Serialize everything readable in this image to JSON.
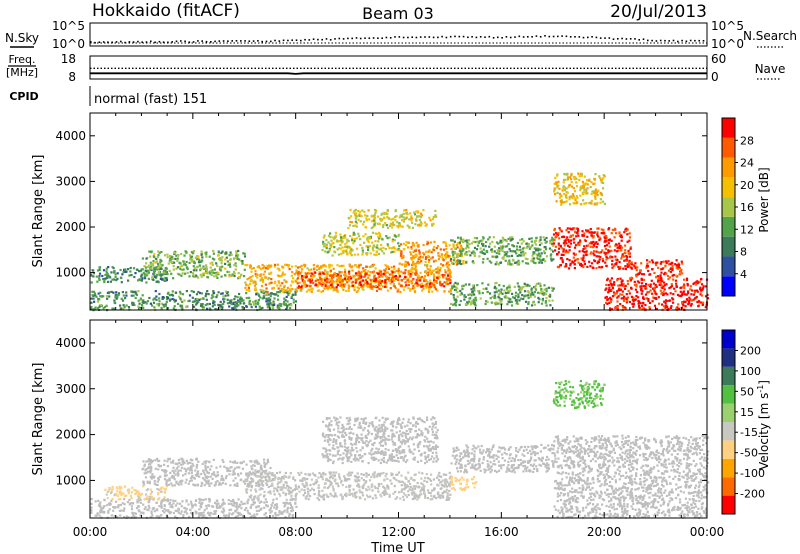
{
  "header": {
    "site": "Hokkaido (fitACF)",
    "beam": "Beam 03",
    "date": "20/Jul/2013"
  },
  "top_panels": {
    "nsky": {
      "left_label": "N.Sky",
      "right_label": "N.Search",
      "left_ticks": [
        "10^5",
        "10^0"
      ],
      "right_ticks": [
        "10^5",
        "10^0"
      ]
    },
    "freq": {
      "left_label_1": "Freq.",
      "left_label_2": "[MHz]",
      "right_label": "Nave",
      "left_ticks": [
        "18",
        "8"
      ],
      "right_ticks": [
        "60",
        "0"
      ]
    },
    "cpid": {
      "left_label": "CPID",
      "value": "normal (fast) 151"
    }
  },
  "colors": {
    "power_scale": [
      "#0000ff",
      "#2f4fa0",
      "#3c7a5a",
      "#52a34a",
      "#a8c64a",
      "#f5c000",
      "#ff9a00",
      "#ff5a00",
      "#ff0000"
    ],
    "velocity_scale": [
      "#ff0000",
      "#ff6a00",
      "#ffa500",
      "#ffd080",
      "#c8c8c0",
      "#9ad070",
      "#52c040",
      "#3c7a5a",
      "#203080",
      "#0000cc"
    ],
    "ground_scatter": "#bebebe"
  },
  "chart_data": [
    {
      "type": "line",
      "title": "N.Sky / N.Search",
      "x_unit": "hours UT",
      "xlim": [
        0,
        24
      ],
      "series": [
        {
          "name": "N.Sky",
          "x": [
            0,
            2,
            4,
            6,
            8,
            10,
            12,
            14,
            16,
            18,
            20,
            22,
            24
          ],
          "values": [
            3,
            4,
            5,
            6,
            9,
            30,
            80,
            120,
            90,
            200,
            40,
            10,
            5
          ]
        },
        {
          "name": "N.Search",
          "x": [
            0,
            2,
            4,
            6,
            8,
            10,
            12,
            14,
            16,
            18,
            20,
            22,
            24
          ],
          "values": [
            1,
            1,
            1,
            1,
            1,
            1,
            1,
            1,
            1,
            1,
            1,
            1,
            1
          ]
        }
      ],
      "log_scale": true
    },
    {
      "type": "line",
      "title": "Freq. / Nave",
      "xlim": [
        0,
        24
      ],
      "series": [
        {
          "name": "Freq.",
          "x": [
            0,
            4,
            7.7,
            8,
            8.3,
            12,
            18,
            24
          ],
          "values": [
            10.5,
            10.5,
            10.5,
            10.2,
            10.5,
            10.5,
            10.5,
            10.5
          ]
        },
        {
          "name": "Nave",
          "x": [
            0,
            6,
            12,
            18,
            24
          ],
          "values": [
            28,
            28,
            28,
            28,
            28
          ]
        }
      ],
      "ylim_freq": [
        8,
        18
      ],
      "ylim_nave": [
        0,
        60
      ]
    },
    {
      "type": "heatmap",
      "title": "",
      "panel": "power",
      "xlabel": "Time UT",
      "ylabel": "Slant Range [km]",
      "xlim": [
        0,
        24
      ],
      "ylim": [
        180,
        4500
      ],
      "x_ticks": [
        "00:00",
        "04:00",
        "08:00",
        "12:00",
        "16:00",
        "20:00",
        "00:00"
      ],
      "y_ticks": [
        1000,
        2000,
        3000,
        4000
      ],
      "colorbar_label": "Power [dB]",
      "colorbar_ticks": [
        4,
        8,
        12,
        16,
        20,
        24,
        28
      ],
      "clim": [
        0,
        30
      ],
      "regions": [
        {
          "t0": 0,
          "t1": 8,
          "r0": 200,
          "r1": 620,
          "value": 10
        },
        {
          "t0": 0,
          "t1": 3,
          "r0": 800,
          "r1": 1150,
          "value": 9
        },
        {
          "t0": 2,
          "t1": 6,
          "r0": 900,
          "r1": 1500,
          "value": 13
        },
        {
          "t0": 6,
          "t1": 14,
          "r0": 600,
          "r1": 1200,
          "value": 20
        },
        {
          "t0": 8,
          "t1": 14,
          "r0": 700,
          "r1": 1050,
          "value": 25
        },
        {
          "t0": 9,
          "t1": 12,
          "r0": 1400,
          "r1": 1900,
          "value": 16
        },
        {
          "t0": 10,
          "t1": 13.5,
          "r0": 2000,
          "r1": 2400,
          "value": 17
        },
        {
          "t0": 12,
          "t1": 14.5,
          "r0": 1200,
          "r1": 1700,
          "value": 22
        },
        {
          "t0": 14,
          "t1": 18,
          "r0": 1200,
          "r1": 1800,
          "value": 12
        },
        {
          "t0": 14,
          "t1": 18,
          "r0": 300,
          "r1": 800,
          "value": 12
        },
        {
          "t0": 18,
          "t1": 21,
          "r0": 1100,
          "r1": 2000,
          "value": 28
        },
        {
          "t0": 18,
          "t1": 20,
          "r0": 2500,
          "r1": 3200,
          "value": 18
        },
        {
          "t0": 20,
          "t1": 24,
          "r0": 200,
          "r1": 900,
          "value": 29
        },
        {
          "t0": 21,
          "t1": 23,
          "r0": 900,
          "r1": 1300,
          "value": 27
        }
      ]
    },
    {
      "type": "heatmap",
      "title": "",
      "panel": "velocity",
      "xlabel": "Time UT",
      "ylabel": "Slant Range [km]",
      "xlim": [
        0,
        24
      ],
      "ylim": [
        180,
        4500
      ],
      "x_ticks": [
        "00:00",
        "04:00",
        "08:00",
        "12:00",
        "16:00",
        "20:00",
        "00:00"
      ],
      "y_ticks": [
        1000,
        2000,
        3000,
        4000
      ],
      "colorbar_label": "Velocity [m s^-1]",
      "colorbar_ticks": [
        200,
        100,
        50,
        15,
        -15,
        -50,
        -100,
        -200
      ],
      "clim": [
        -250,
        250
      ],
      "regions": [
        {
          "t0": 0,
          "t1": 8,
          "r0": 200,
          "r1": 620,
          "value": 0
        },
        {
          "t0": 0.5,
          "t1": 3,
          "r0": 600,
          "r1": 900,
          "value": -60
        },
        {
          "t0": 2,
          "t1": 7,
          "r0": 900,
          "r1": 1500,
          "value": 0
        },
        {
          "t0": 6,
          "t1": 14,
          "r0": 600,
          "r1": 1200,
          "value": -20
        },
        {
          "t0": 9,
          "t1": 13.5,
          "r0": 1400,
          "r1": 2400,
          "value": 0
        },
        {
          "t0": 14,
          "t1": 15,
          "r0": 800,
          "r1": 1100,
          "value": -80
        },
        {
          "t0": 14,
          "t1": 18,
          "r0": 1200,
          "r1": 1800,
          "value": 0
        },
        {
          "t0": 18,
          "t1": 24,
          "r0": 200,
          "r1": 2000,
          "value": 0
        },
        {
          "t0": 18,
          "t1": 20,
          "r0": 2600,
          "r1": 3200,
          "value": 60
        }
      ]
    }
  ]
}
